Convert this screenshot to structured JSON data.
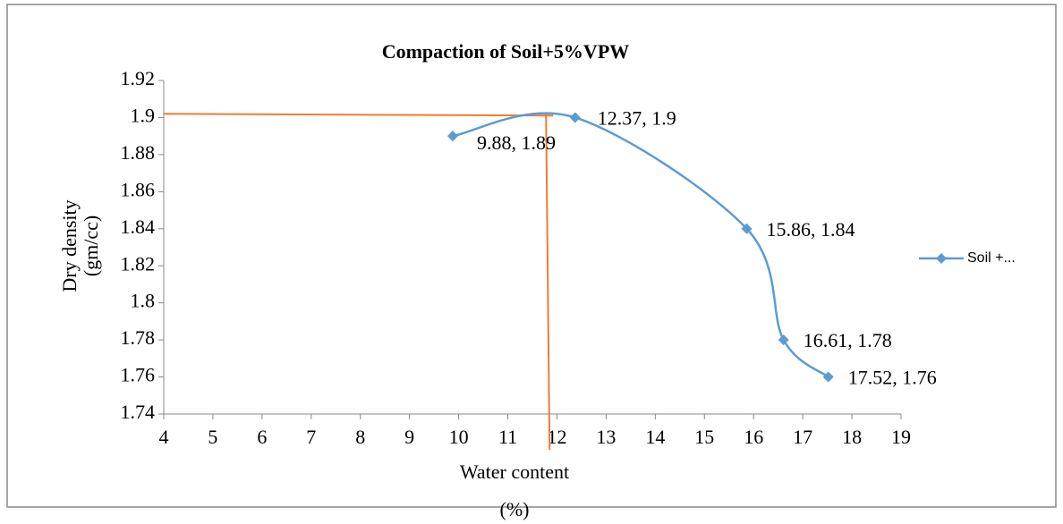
{
  "chart_data": {
    "type": "line",
    "title": "Compaction of Soil+5%VPW",
    "xlabel": [
      "Water content",
      "(%)"
    ],
    "ylabel": [
      "Dry density",
      "(gm/cc)"
    ],
    "x": [
      9.88,
      12.37,
      15.86,
      16.61,
      17.52
    ],
    "series": [
      {
        "name": "Soil +...",
        "color": "#5b9bd5",
        "values": [
          1.89,
          1.9,
          1.84,
          1.78,
          1.76
        ],
        "value_labels": [
          "9.88, 1.89",
          "12.37, 1.9",
          "15.86, 1.84",
          "16.61, 1.78",
          "17.52, 1.76"
        ]
      }
    ],
    "reference_lines": {
      "x": 11.85,
      "y": 1.902,
      "color": "#ed7d31"
    },
    "xlim": [
      4,
      19
    ],
    "xticks": [
      4,
      5,
      6,
      7,
      8,
      9,
      10,
      11,
      12,
      13,
      14,
      15,
      16,
      17,
      18,
      19
    ],
    "ylim": [
      1.74,
      1.92
    ],
    "yticks": [
      1.74,
      1.76,
      1.78,
      1.8,
      1.82,
      1.84,
      1.86,
      1.88,
      1.9,
      1.92
    ],
    "grid": false,
    "legend": "right"
  }
}
